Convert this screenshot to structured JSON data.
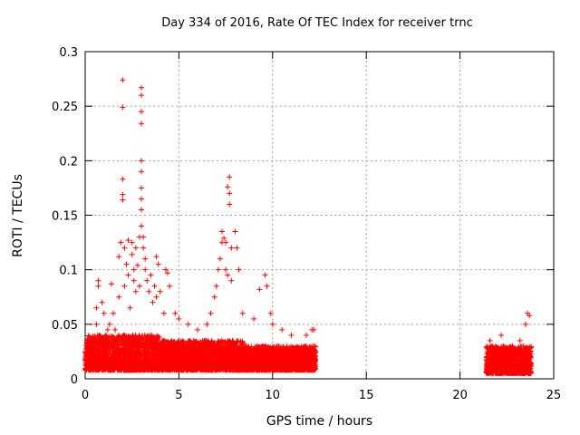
{
  "chart_data": {
    "type": "scatter",
    "title": "Day 334 of 2016, Rate Of TEC Index for receiver trnc",
    "xlabel": "GPS time / hours",
    "ylabel": "ROTI / TECUs",
    "xlim": [
      0,
      25
    ],
    "ylim": [
      0,
      0.3
    ],
    "xticks": [
      "0",
      "5",
      "10",
      "15",
      "20",
      "25"
    ],
    "yticks": [
      "0",
      "0.05",
      "0.1",
      "0.15",
      "0.2",
      "0.25",
      "0.3"
    ],
    "grid": true,
    "marker": "plus",
    "color": "#ff0000",
    "series": [
      {
        "name": "ROTI",
        "points": [
          [
            0.3,
            0.03
          ],
          [
            0.5,
            0.035
          ],
          [
            0.6,
            0.05
          ],
          [
            0.6,
            0.065
          ],
          [
            0.7,
            0.085
          ],
          [
            0.7,
            0.09
          ],
          [
            0.9,
            0.07
          ],
          [
            1.0,
            0.06
          ],
          [
            1.2,
            0.045
          ],
          [
            1.3,
            0.05
          ],
          [
            1.4,
            0.087
          ],
          [
            1.5,
            0.06
          ],
          [
            1.6,
            0.045
          ],
          [
            1.8,
            0.075
          ],
          [
            1.8,
            0.112
          ],
          [
            1.9,
            0.125
          ],
          [
            2.0,
            0.274
          ],
          [
            2.0,
            0.249
          ],
          [
            2.0,
            0.183
          ],
          [
            2.0,
            0.169
          ],
          [
            2.0,
            0.164
          ],
          [
            2.1,
            0.12
          ],
          [
            2.1,
            0.085
          ],
          [
            2.2,
            0.105
          ],
          [
            2.3,
            0.095
          ],
          [
            2.3,
            0.127
          ],
          [
            2.4,
            0.065
          ],
          [
            2.5,
            0.114
          ],
          [
            2.5,
            0.125
          ],
          [
            2.6,
            0.1
          ],
          [
            2.6,
            0.09
          ],
          [
            2.7,
            0.08
          ],
          [
            2.7,
            0.12
          ],
          [
            2.8,
            0.104
          ],
          [
            2.9,
            0.085
          ],
          [
            2.9,
            0.13
          ],
          [
            3.0,
            0.267
          ],
          [
            3.0,
            0.26
          ],
          [
            3.0,
            0.245
          ],
          [
            3.0,
            0.234
          ],
          [
            3.0,
            0.2
          ],
          [
            3.0,
            0.19
          ],
          [
            3.0,
            0.175
          ],
          [
            3.0,
            0.165
          ],
          [
            3.0,
            0.155
          ],
          [
            3.0,
            0.14
          ],
          [
            3.1,
            0.12
          ],
          [
            3.1,
            0.13
          ],
          [
            3.2,
            0.11
          ],
          [
            3.2,
            0.1
          ],
          [
            3.3,
            0.09
          ],
          [
            3.4,
            0.08
          ],
          [
            3.5,
            0.095
          ],
          [
            3.6,
            0.07
          ],
          [
            3.7,
            0.085
          ],
          [
            3.8,
            0.075
          ],
          [
            3.8,
            0.112
          ],
          [
            3.9,
            0.105
          ],
          [
            4.0,
            0.08
          ],
          [
            4.2,
            0.06
          ],
          [
            4.3,
            0.1
          ],
          [
            4.4,
            0.097
          ],
          [
            4.5,
            0.085
          ],
          [
            4.8,
            0.06
          ],
          [
            5.0,
            0.055
          ],
          [
            5.5,
            0.05
          ],
          [
            6.0,
            0.045
          ],
          [
            6.5,
            0.05
          ],
          [
            6.7,
            0.06
          ],
          [
            6.9,
            0.075
          ],
          [
            7.0,
            0.085
          ],
          [
            7.1,
            0.1
          ],
          [
            7.2,
            0.11
          ],
          [
            7.3,
            0.125
          ],
          [
            7.3,
            0.135
          ],
          [
            7.4,
            0.129
          ],
          [
            7.5,
            0.125
          ],
          [
            7.5,
            0.1
          ],
          [
            7.6,
            0.095
          ],
          [
            7.6,
            0.176
          ],
          [
            7.7,
            0.185
          ],
          [
            7.7,
            0.17
          ],
          [
            7.7,
            0.16
          ],
          [
            7.8,
            0.12
          ],
          [
            7.8,
            0.09
          ],
          [
            8.0,
            0.135
          ],
          [
            8.1,
            0.12
          ],
          [
            8.2,
            0.1
          ],
          [
            8.4,
            0.06
          ],
          [
            9.0,
            0.055
          ],
          [
            9.3,
            0.082
          ],
          [
            9.6,
            0.095
          ],
          [
            9.7,
            0.085
          ],
          [
            9.9,
            0.06
          ],
          [
            10.0,
            0.05
          ],
          [
            10.5,
            0.045
          ],
          [
            11.0,
            0.04
          ],
          [
            11.8,
            0.04
          ],
          [
            12.1,
            0.045
          ],
          [
            12.2,
            0.045
          ],
          [
            21.6,
            0.035
          ],
          [
            22.2,
            0.04
          ],
          [
            22.8,
            0.03
          ],
          [
            23.2,
            0.035
          ],
          [
            23.5,
            0.05
          ],
          [
            23.6,
            0.06
          ],
          [
            23.7,
            0.058
          ]
        ]
      }
    ],
    "bands": [
      {
        "x0": 0.0,
        "x1": 4.0,
        "ymin": 0.008,
        "ymax": 0.04
      },
      {
        "x0": 4.0,
        "x1": 8.5,
        "ymin": 0.008,
        "ymax": 0.035
      },
      {
        "x0": 8.5,
        "x1": 12.3,
        "ymin": 0.008,
        "ymax": 0.03
      },
      {
        "x0": 21.4,
        "x1": 23.8,
        "ymin": 0.005,
        "ymax": 0.03
      }
    ]
  }
}
